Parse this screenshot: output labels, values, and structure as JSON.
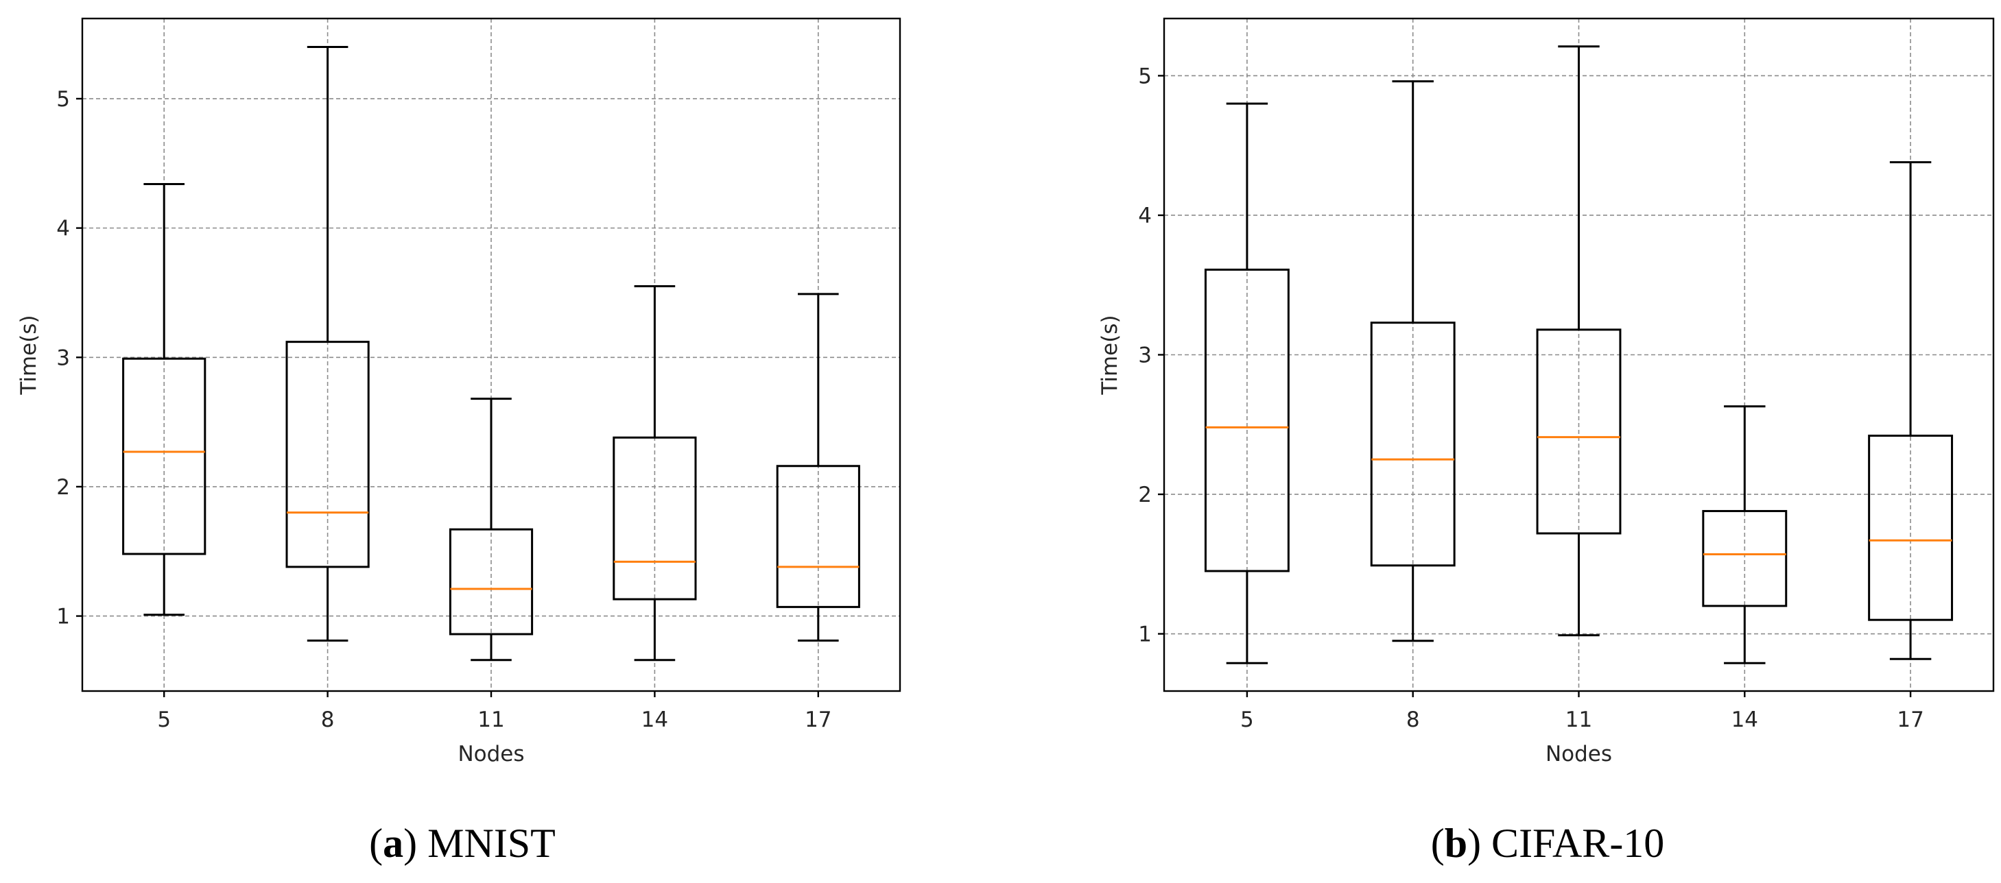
{
  "chart_data": [
    {
      "type": "box",
      "panel_id": "a",
      "panel_name": "MNIST",
      "xlabel": "Nodes",
      "ylabel": "Time(s)",
      "ylim": [
        0.42,
        5.62
      ],
      "yticks": [
        1,
        2,
        3,
        4,
        5
      ],
      "grid": true,
      "categories": [
        "5",
        "8",
        "11",
        "14",
        "17"
      ],
      "boxes": [
        {
          "label": "5",
          "whislo": 1.01,
          "q1": 1.48,
          "med": 2.27,
          "q3": 2.99,
          "whishi": 4.34
        },
        {
          "label": "8",
          "whislo": 0.81,
          "q1": 1.38,
          "med": 1.8,
          "q3": 3.12,
          "whishi": 5.4
        },
        {
          "label": "11",
          "whislo": 0.66,
          "q1": 0.86,
          "med": 1.21,
          "q3": 1.67,
          "whishi": 2.68
        },
        {
          "label": "14",
          "whislo": 0.66,
          "q1": 1.13,
          "med": 1.42,
          "q3": 2.38,
          "whishi": 3.55
        },
        {
          "label": "17",
          "whislo": 0.81,
          "q1": 1.07,
          "med": 1.38,
          "q3": 2.16,
          "whishi": 3.49
        }
      ]
    },
    {
      "type": "box",
      "panel_id": "b",
      "panel_name": "CIFAR-10",
      "xlabel": "Nodes",
      "ylabel": "Time(s)",
      "ylim": [
        0.59,
        5.41
      ],
      "yticks": [
        1,
        2,
        3,
        4,
        5
      ],
      "grid": true,
      "categories": [
        "5",
        "8",
        "11",
        "14",
        "17"
      ],
      "boxes": [
        {
          "label": "5",
          "whislo": 0.79,
          "q1": 1.45,
          "med": 2.48,
          "q3": 3.61,
          "whishi": 4.8
        },
        {
          "label": "8",
          "whislo": 0.95,
          "q1": 1.49,
          "med": 2.25,
          "q3": 3.23,
          "whishi": 4.96
        },
        {
          "label": "11",
          "whislo": 0.99,
          "q1": 1.72,
          "med": 2.41,
          "q3": 3.18,
          "whishi": 5.21
        },
        {
          "label": "14",
          "whislo": 0.79,
          "q1": 1.2,
          "med": 1.57,
          "q3": 1.88,
          "whishi": 2.63
        },
        {
          "label": "17",
          "whislo": 0.82,
          "q1": 1.1,
          "med": 1.67,
          "q3": 2.42,
          "whishi": 4.38
        }
      ]
    }
  ],
  "colors": {
    "median": "#ff7f0e",
    "box": "#000000",
    "grid": "#8c8c8c"
  }
}
